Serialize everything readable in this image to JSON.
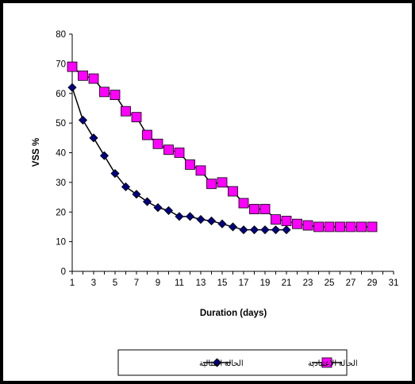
{
  "chart_data": {
    "type": "line",
    "title": "",
    "xlabel": "Duration (days)",
    "ylabel": "VSS %",
    "xlim": [
      1,
      31
    ],
    "ylim": [
      0,
      80
    ],
    "xticks": [
      1,
      3,
      5,
      7,
      9,
      11,
      13,
      15,
      17,
      19,
      21,
      23,
      25,
      27,
      29,
      31
    ],
    "yticks": [
      0,
      10,
      20,
      30,
      40,
      50,
      60,
      70,
      80
    ],
    "grid": false,
    "legend_position": "bottom",
    "series": [
      {
        "name": "الحالة المثالية",
        "marker": "diamond",
        "color": "#000080",
        "line_color": "#000000",
        "x": [
          1,
          2,
          3,
          4,
          5,
          6,
          7,
          8,
          9,
          10,
          11,
          12,
          13,
          14,
          15,
          16,
          17,
          18,
          19,
          20,
          21
        ],
        "values": [
          62,
          51,
          45,
          39,
          33,
          28.5,
          26,
          23.5,
          21.5,
          20.5,
          18.5,
          18.5,
          17.5,
          17,
          16,
          15,
          14,
          14,
          14,
          14,
          14
        ]
      },
      {
        "name": "الحالة الاعتيادية",
        "marker": "square",
        "color": "#FF00FF",
        "line_color": "#000000",
        "x": [
          1,
          2,
          3,
          4,
          5,
          6,
          7,
          8,
          9,
          10,
          11,
          12,
          13,
          14,
          15,
          16,
          17,
          18,
          19,
          20,
          21,
          22,
          23,
          24,
          25,
          26,
          27,
          28,
          29
        ],
        "values": [
          69,
          66,
          65,
          60.5,
          59.5,
          54,
          52,
          46,
          43,
          41,
          40,
          36,
          34,
          29.5,
          30,
          27,
          23,
          21,
          21,
          17.5,
          17,
          16,
          15.5,
          15,
          15,
          15,
          15,
          15,
          15
        ]
      }
    ]
  }
}
